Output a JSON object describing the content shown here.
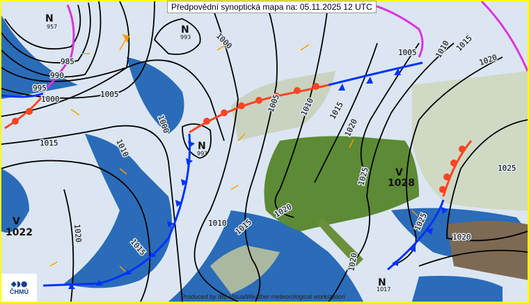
{
  "header": {
    "title": "Předpovědní synoptická mapa na: 05.11.2025 12 UTC"
  },
  "footer": {
    "credit": "Produced by IBL VisualWeather meteorological workstation"
  },
  "logo": {
    "text": "ČHMÚ"
  },
  "colors": {
    "sea": "#2a6cb8",
    "cloud": "#dbe6f2",
    "land": "#5c8a35",
    "border": "#ffff00",
    "warm_front": "#ff4422",
    "cold_front": "#0033ff",
    "occluded_front": "#dd33dd",
    "wind_arrow": "#ff9900"
  },
  "pressure_centers": [
    {
      "type": "N",
      "value": "957"
    },
    {
      "type": "N",
      "value": "993"
    },
    {
      "type": "N",
      "value": "993"
    },
    {
      "type": "V",
      "value": "1022"
    },
    {
      "type": "V",
      "value": "1028"
    },
    {
      "type": "N",
      "value": "1017"
    }
  ],
  "isobar_labels": [
    "985",
    "990",
    "995",
    "1000",
    "1005",
    "1000",
    "1015",
    "1010",
    "1000",
    "1005",
    "1010",
    "1015",
    "1020",
    "1025",
    "1020",
    "1025",
    "1005",
    "1010",
    "1015",
    "1020",
    "1025",
    "1020",
    "1015",
    "1010",
    "1015",
    "1020",
    "1020"
  ]
}
